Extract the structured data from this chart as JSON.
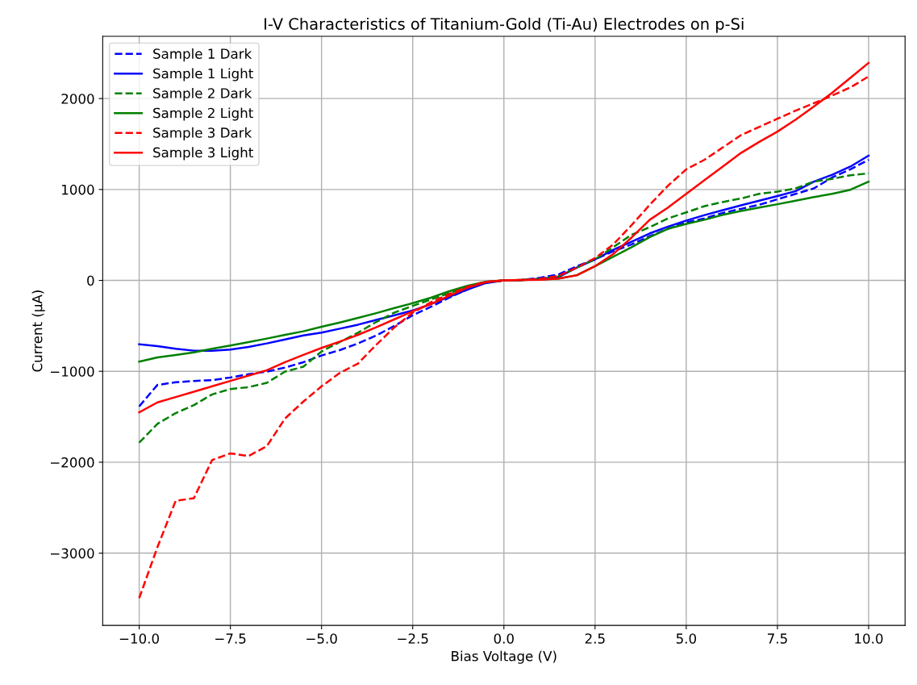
{
  "chart_data": {
    "type": "line",
    "title": "I-V Characteristics of Titanium-Gold (Ti-Au) Electrodes on p-Si",
    "xlabel": "Bias Voltage (V)",
    "ylabel": "Current (μA)",
    "x": [
      -10,
      -9.5,
      -9,
      -8.5,
      -8,
      -7.5,
      -7,
      -6.5,
      -6,
      -5.5,
      -5,
      -4.5,
      -4,
      -3.5,
      -3,
      -2.5,
      -2,
      -1.5,
      -1,
      -0.5,
      0,
      0.5,
      1,
      1.5,
      2,
      2.5,
      3,
      3.5,
      4,
      4.5,
      5,
      5.5,
      6,
      6.5,
      7,
      7.5,
      8,
      8.5,
      9,
      9.5,
      10
    ],
    "series": [
      {
        "name": "Sample 1 Dark",
        "color": "#0000ff",
        "line_style": "dashed",
        "values": [
          -1386,
          -1150,
          -1121,
          -1106,
          -1097,
          -1068,
          -1032,
          -1003,
          -959,
          -900,
          -826,
          -767,
          -693,
          -605,
          -501,
          -383,
          -290,
          -190,
          -100,
          -25,
          0,
          5,
          30,
          66,
          156,
          231,
          321,
          396,
          487,
          568,
          637,
          682,
          742,
          787,
          832,
          892,
          952,
          1012,
          1132,
          1222,
          1327
        ]
      },
      {
        "name": "Sample 1 Light",
        "color": "#0000ff",
        "line_style": "solid",
        "values": [
          -702,
          -723,
          -752,
          -773,
          -773,
          -761,
          -732,
          -693,
          -649,
          -605,
          -575,
          -531,
          -487,
          -434,
          -383,
          -331,
          -260,
          -180,
          -100,
          -30,
          0,
          5,
          18,
          36,
          141,
          231,
          336,
          426,
          517,
          592,
          658,
          718,
          772,
          826,
          877,
          928,
          982,
          1087,
          1162,
          1252,
          1372
        ]
      },
      {
        "name": "Sample 2 Dark",
        "color": "#008000",
        "line_style": "dashed",
        "values": [
          -1785,
          -1578,
          -1460,
          -1372,
          -1254,
          -1195,
          -1174,
          -1127,
          -1003,
          -950,
          -782,
          -678,
          -575,
          -457,
          -354,
          -280,
          -210,
          -140,
          -70,
          -20,
          0,
          5,
          18,
          45,
          141,
          231,
          366,
          502,
          586,
          682,
          748,
          817,
          862,
          901,
          952,
          976,
          1012,
          1087,
          1117,
          1156,
          1177
        ]
      },
      {
        "name": "Sample 2 Light",
        "color": "#008000",
        "line_style": "solid",
        "values": [
          -894,
          -847,
          -820,
          -791,
          -752,
          -717,
          -678,
          -640,
          -599,
          -560,
          -510,
          -463,
          -413,
          -360,
          -304,
          -251,
          -190,
          -120,
          -60,
          -15,
          0,
          5,
          10,
          21,
          57,
          156,
          261,
          366,
          477,
          568,
          622,
          667,
          721,
          763,
          802,
          838,
          877,
          916,
          952,
          997,
          1087
        ]
      },
      {
        "name": "Sample 3 Dark",
        "color": "#ff0000",
        "line_style": "dashed",
        "values": [
          -3496,
          -2935,
          -2425,
          -2395,
          -1976,
          -1903,
          -1932,
          -1823,
          -1519,
          -1333,
          -1165,
          -1018,
          -914,
          -708,
          -516,
          -354,
          -240,
          -150,
          -70,
          -15,
          0,
          5,
          18,
          51,
          141,
          246,
          396,
          607,
          832,
          1042,
          1222,
          1327,
          1462,
          1598,
          1688,
          1778,
          1868,
          1949,
          2033,
          2123,
          2243
        ]
      },
      {
        "name": "Sample 3 Light",
        "color": "#ff0000",
        "line_style": "solid",
        "values": [
          -1451,
          -1342,
          -1283,
          -1224,
          -1165,
          -1106,
          -1047,
          -988,
          -900,
          -820,
          -743,
          -673,
          -599,
          -516,
          -428,
          -339,
          -260,
          -170,
          -80,
          -20,
          0,
          5,
          6,
          21,
          57,
          156,
          291,
          471,
          667,
          802,
          952,
          1102,
          1252,
          1402,
          1523,
          1637,
          1769,
          1913,
          2063,
          2228,
          2393
        ]
      }
    ],
    "xlim": [
      -11,
      11
    ],
    "ylim": [
      -3795,
      2685
    ],
    "xticks": [
      {
        "value": -10,
        "label": "−10.0"
      },
      {
        "value": -7.5,
        "label": "−7.5"
      },
      {
        "value": -5,
        "label": "−5.0"
      },
      {
        "value": -2.5,
        "label": "−2.5"
      },
      {
        "value": 0,
        "label": "0.0"
      },
      {
        "value": 2.5,
        "label": "2.5"
      },
      {
        "value": 5,
        "label": "5.0"
      },
      {
        "value": 7.5,
        "label": "7.5"
      },
      {
        "value": 10,
        "label": "10.0"
      }
    ],
    "yticks": [
      {
        "value": -3000,
        "label": "−3000"
      },
      {
        "value": -2000,
        "label": "−2000"
      },
      {
        "value": -1000,
        "label": "−1000"
      },
      0,
      1000,
      2000
    ],
    "grid": true,
    "legend": "top left",
    "marker": "none"
  }
}
